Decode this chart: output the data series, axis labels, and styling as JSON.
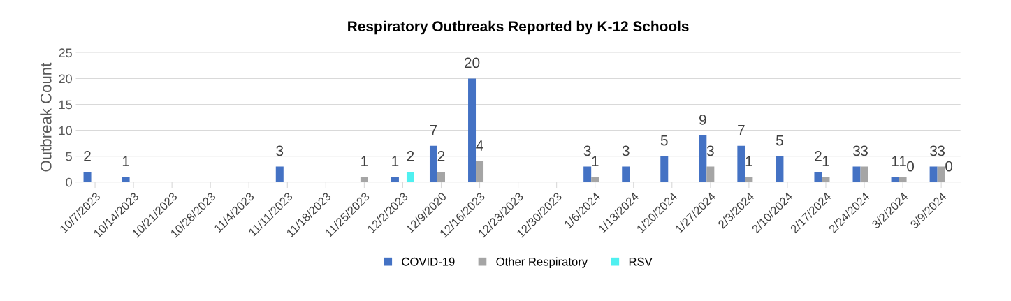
{
  "chart_data": {
    "type": "bar",
    "title": "Respiratory Outbreaks Reported by K-12 Schools",
    "ylabel": "Outbreak Count",
    "categories": [
      "10/7/2023",
      "10/14/2023",
      "10/21/2023",
      "10/28/2023",
      "11/4/2023",
      "11/11/2023",
      "11/18/2023",
      "11/25/2023",
      "12/2/2023",
      "12/9/2020",
      "12/16/2023",
      "12/23/2023",
      "12/30/2023",
      "1/6/2024",
      "1/13/2024",
      "1/20/2024",
      "1/27/2024",
      "2/3/2024",
      "2/10/2024",
      "2/17/2024",
      "2/24/2024",
      "3/2/2024",
      "3/9/2024"
    ],
    "series": [
      {
        "name": "COVID-19",
        "color": "#4472c4",
        "values": [
          2,
          1,
          null,
          null,
          null,
          3,
          null,
          null,
          1,
          7,
          20,
          null,
          null,
          3,
          3,
          5,
          9,
          7,
          5,
          2,
          3,
          1,
          3
        ]
      },
      {
        "name": "Other Respiratory",
        "color": "#a5a5a5",
        "values": [
          null,
          null,
          null,
          null,
          null,
          null,
          null,
          1,
          null,
          2,
          4,
          null,
          null,
          1,
          null,
          null,
          3,
          1,
          null,
          1,
          3,
          1,
          3
        ]
      },
      {
        "name": "RSV",
        "color": "#4ff0f0",
        "values": [
          null,
          null,
          null,
          null,
          null,
          null,
          null,
          null,
          2,
          null,
          null,
          null,
          null,
          null,
          null,
          null,
          null,
          null,
          null,
          null,
          null,
          0,
          0
        ]
      }
    ],
    "ylim": [
      0,
      25
    ],
    "yticks": [
      0,
      5,
      10,
      15,
      20,
      25
    ],
    "grid": "y",
    "legend": "bottom",
    "data_labels": true
  }
}
